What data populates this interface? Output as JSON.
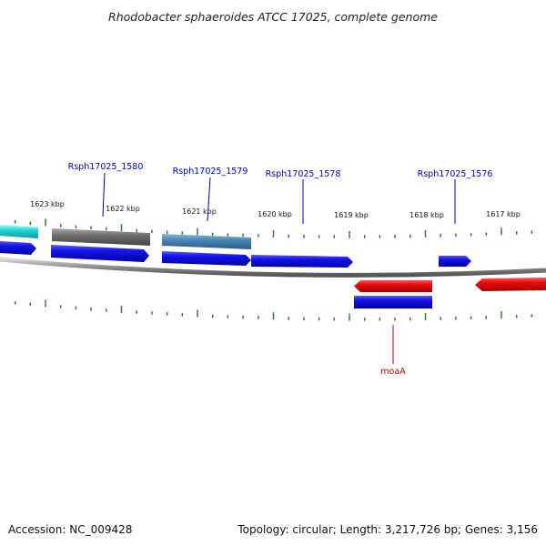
{
  "title": "Rhodobacter sphaeroides ATCC 17025, complete genome",
  "footer": {
    "accession": "Accession: NC_009428",
    "summary": "Topology: circular; Length: 3,217,726 bp; Genes: 3,156"
  },
  "colors": {
    "backbone": "#8a8a8a",
    "tick": "#2e7d2e",
    "forward_cds": "#1010e0",
    "reverse_cds": "#e00000",
    "feature_gray": "#6e6e6e",
    "feature_steelblue": "#4a86b4",
    "feature_cyan": "#22d4d4",
    "label_forward": "#0000cc",
    "label_reverse": "#cc0000"
  },
  "ticks": [
    {
      "label": "1623 kbp"
    },
    {
      "label": "1622 kbp"
    },
    {
      "label": "1621 kbp"
    },
    {
      "label": "1620 kbp"
    },
    {
      "label": "1619 kbp"
    },
    {
      "label": "1618 kbp"
    },
    {
      "label": "1617 kbp"
    }
  ],
  "labels": [
    {
      "text": "Rsph17025_1580",
      "strand": "forward"
    },
    {
      "text": "Rsph17025_1579",
      "strand": "forward"
    },
    {
      "text": "Rsph17025_1578",
      "strand": "forward"
    },
    {
      "text": "Rsph17025_1576",
      "strand": "forward"
    },
    {
      "text": "moaA",
      "strand": "reverse"
    }
  ],
  "features": [
    {
      "kind": "cyan-feature",
      "color": "feature_cyan"
    },
    {
      "kind": "gray-feature",
      "color": "feature_gray"
    },
    {
      "kind": "steelblue-feature",
      "color": "feature_steelblue"
    },
    {
      "kind": "forward-cds",
      "color": "forward_cds"
    },
    {
      "kind": "forward-cds",
      "color": "forward_cds"
    },
    {
      "kind": "forward-cds",
      "color": "forward_cds"
    },
    {
      "kind": "forward-cds",
      "color": "forward_cds"
    },
    {
      "kind": "forward-cds",
      "color": "forward_cds"
    },
    {
      "kind": "reverse-cds",
      "color": "reverse_cds"
    },
    {
      "kind": "reverse-cds",
      "color": "reverse_cds"
    },
    {
      "kind": "reverse-feature-blue",
      "color": "forward_cds"
    }
  ]
}
